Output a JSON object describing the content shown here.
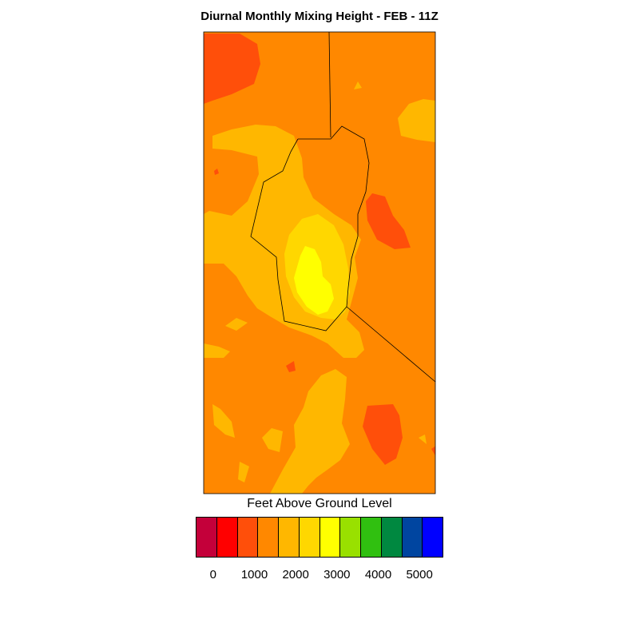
{
  "title": "Diurnal Monthly Mixing Height - FEB - 11Z",
  "legend": {
    "title": "Feet Above Ground Level",
    "colors": [
      "#c4003a",
      "#ff0000",
      "#ff4f0a",
      "#ff8800",
      "#ffb700",
      "#ffd700",
      "#ffff00",
      "#99e000",
      "#30c010",
      "#008840",
      "#0045a0",
      "#0000ff"
    ],
    "tick_labels": [
      "0",
      "1000",
      "2000",
      "3000",
      "4000",
      "5000"
    ]
  },
  "map_colors": {
    "background": "#ff8800",
    "band_2000": "#ffb700",
    "band_2500": "#ffd700",
    "band_3000": "#ffff00",
    "low_pockets": "#ff4f0a"
  }
}
